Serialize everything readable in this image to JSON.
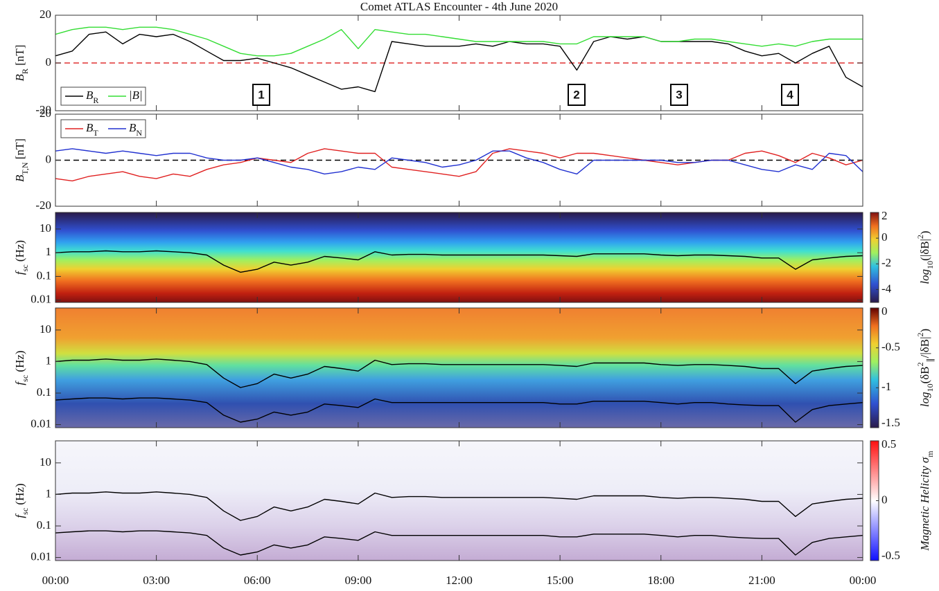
{
  "chart_data": [
    {
      "type": "line",
      "title": "Comet ATLAS Encounter - 4th June 2020",
      "ylabel": [
        {
          "t": "B"
        },
        {
          "t": "R",
          "s": "sub"
        },
        {
          "t": " [nT]"
        }
      ],
      "xlim": [
        0,
        24
      ],
      "ylim": [
        -20,
        20
      ],
      "yticks": [
        -20,
        0,
        20
      ],
      "zero_line": "#e03030",
      "legend": "lower left",
      "annotations": [
        "1",
        "2",
        "3",
        "4"
      ],
      "x": [
        0,
        0.5,
        1,
        1.5,
        2,
        2.5,
        3,
        3.5,
        4,
        4.5,
        5,
        5.5,
        6,
        6.5,
        7,
        7.5,
        8,
        8.5,
        9,
        9.5,
        10,
        10.5,
        11,
        11.5,
        12,
        12.5,
        13,
        13.5,
        14,
        14.5,
        15,
        15.5,
        16,
        16.5,
        17,
        17.5,
        18,
        18.5,
        19,
        19.5,
        20,
        20.5,
        21,
        21.5,
        22,
        22.5,
        23,
        23.5,
        24
      ],
      "series": [
        {
          "name": [
            {
              "t": "B"
            },
            {
              "t": "R",
              "s": "sub"
            }
          ],
          "color": "#000000",
          "values": [
            3,
            5,
            12,
            13,
            8,
            12,
            11,
            12,
            9,
            5,
            1,
            1,
            2,
            0,
            -2,
            -5,
            -8,
            -11,
            -10,
            -12,
            9,
            8,
            7,
            7,
            7,
            8,
            7,
            9,
            8,
            8,
            7,
            -3,
            9,
            11,
            10,
            11,
            9,
            9,
            9,
            9,
            8,
            5,
            3,
            4,
            0,
            4,
            7,
            -6,
            -10
          ]
        },
        {
          "name": [
            {
              "t": "|B|"
            }
          ],
          "color": "#33dd33",
          "values": [
            12,
            14,
            15,
            15,
            14,
            15,
            15,
            14,
            12,
            10,
            7,
            4,
            3,
            3,
            4,
            7,
            10,
            14,
            6,
            14,
            13,
            12,
            12,
            11,
            10,
            9,
            9,
            9,
            9,
            9,
            8,
            8,
            11,
            11,
            11,
            11,
            9,
            9,
            10,
            10,
            9,
            8,
            7,
            8,
            7,
            9,
            10,
            10,
            10
          ]
        }
      ]
    },
    {
      "type": "line",
      "ylabel": [
        {
          "t": "B"
        },
        {
          "t": "T,N",
          "s": "sub"
        },
        {
          "t": " [nT]"
        }
      ],
      "xlim": [
        0,
        24
      ],
      "ylim": [
        -20,
        20
      ],
      "yticks": [
        -20,
        0,
        20
      ],
      "zero_line": "#000000",
      "legend": "upper left",
      "x": [
        0,
        0.5,
        1,
        1.5,
        2,
        2.5,
        3,
        3.5,
        4,
        4.5,
        5,
        5.5,
        6,
        6.5,
        7,
        7.5,
        8,
        8.5,
        9,
        9.5,
        10,
        10.5,
        11,
        11.5,
        12,
        12.5,
        13,
        13.5,
        14,
        14.5,
        15,
        15.5,
        16,
        16.5,
        17,
        17.5,
        18,
        18.5,
        19,
        19.5,
        20,
        20.5,
        21,
        21.5,
        22,
        22.5,
        23,
        23.5,
        24
      ],
      "series": [
        {
          "name": [
            {
              "t": "B"
            },
            {
              "t": "T",
              "s": "sub"
            }
          ],
          "color": "#e02020",
          "values": [
            -8,
            -9,
            -7,
            -6,
            -5,
            -7,
            -8,
            -6,
            -7,
            -4,
            -2,
            -1,
            1,
            0,
            -1,
            3,
            5,
            4,
            3,
            3,
            -3,
            -4,
            -5,
            -6,
            -7,
            -5,
            3,
            5,
            4,
            3,
            1,
            3,
            3,
            2,
            1,
            0,
            -1,
            -2,
            -1,
            0,
            0,
            3,
            4,
            2,
            -1,
            3,
            1,
            -2,
            0
          ]
        },
        {
          "name": [
            {
              "t": "B"
            },
            {
              "t": "N",
              "s": "sub"
            }
          ],
          "color": "#2030d0",
          "values": [
            4,
            5,
            4,
            3,
            4,
            3,
            2,
            3,
            3,
            1,
            0,
            0,
            1,
            -1,
            -3,
            -4,
            -6,
            -5,
            -3,
            -4,
            1,
            0,
            -1,
            -3,
            -2,
            0,
            4,
            4,
            1,
            -1,
            -4,
            -6,
            0,
            0,
            0,
            0,
            0,
            -1,
            -1,
            0,
            0,
            -2,
            -4,
            -5,
            -2,
            -4,
            3,
            2,
            -5
          ]
        }
      ]
    },
    {
      "type": "spectrogram",
      "ylabel": [
        {
          "t": "f"
        },
        {
          "t": "sc",
          "s": "sub"
        },
        {
          "t": " (Hz)"
        }
      ],
      "clabel": [
        {
          "t": "log"
        },
        {
          "t": "10",
          "s": "sub"
        },
        {
          "t": "(|δB|"
        },
        {
          "t": "2",
          "s": "sup"
        },
        {
          "t": ")"
        }
      ],
      "xlim": [
        0,
        24
      ],
      "ylim": [
        0.008,
        50
      ],
      "log": true,
      "yticks": [
        0.01,
        0.1,
        1,
        10
      ],
      "clim": [
        -5,
        2
      ],
      "cticks": [
        -4,
        -2,
        0,
        2
      ],
      "x": [
        0,
        0.5,
        1,
        1.5,
        2,
        2.5,
        3,
        3.5,
        4,
        4.5,
        5,
        5.5,
        6,
        6.5,
        7,
        7.5,
        8,
        8.5,
        9,
        9.5,
        10,
        10.5,
        11,
        11.5,
        12,
        12.5,
        13,
        13.5,
        14,
        14.5,
        15,
        15.5,
        16,
        16.5,
        17,
        17.5,
        18,
        18.5,
        19,
        19.5,
        20,
        20.5,
        21,
        21.5,
        22,
        22.5,
        23,
        23.5,
        24
      ],
      "series": [
        {
          "color": "#000000",
          "values": [
            1,
            1.1,
            1.1,
            1.2,
            1.1,
            1.1,
            1.2,
            1.1,
            1.0,
            0.8,
            0.3,
            0.15,
            0.2,
            0.4,
            0.3,
            0.4,
            0.7,
            0.6,
            0.5,
            1.1,
            0.8,
            0.85,
            0.85,
            0.8,
            0.8,
            0.8,
            0.8,
            0.8,
            0.8,
            0.8,
            0.75,
            0.7,
            0.9,
            0.9,
            0.9,
            0.9,
            0.8,
            0.75,
            0.8,
            0.8,
            0.75,
            0.7,
            0.6,
            0.6,
            0.2,
            0.5,
            0.6,
            0.7,
            0.75
          ]
        }
      ]
    },
    {
      "type": "spectrogram",
      "ylabel": [
        {
          "t": "f"
        },
        {
          "t": "sc",
          "s": "sub"
        },
        {
          "t": " (Hz)"
        }
      ],
      "clabel": [
        {
          "t": "log"
        },
        {
          "t": "10",
          "s": "sub"
        },
        {
          "t": "(δB"
        },
        {
          "t": "2",
          "s": "sup"
        },
        {
          "t": "∥",
          "s": "sub"
        },
        {
          "t": "/|δB|"
        },
        {
          "t": "2",
          "s": "sup"
        },
        {
          "t": ")"
        }
      ],
      "xlim": [
        0,
        24
      ],
      "ylim": [
        0.008,
        50
      ],
      "log": true,
      "yticks": [
        0.01,
        0.1,
        1,
        10
      ],
      "clim": [
        -1.5,
        0
      ],
      "cticks": [
        -1.5,
        -1,
        -0.5,
        0
      ],
      "x": [
        0,
        0.5,
        1,
        1.5,
        2,
        2.5,
        3,
        3.5,
        4,
        4.5,
        5,
        5.5,
        6,
        6.5,
        7,
        7.5,
        8,
        8.5,
        9,
        9.5,
        10,
        10.5,
        11,
        11.5,
        12,
        12.5,
        13,
        13.5,
        14,
        14.5,
        15,
        15.5,
        16,
        16.5,
        17,
        17.5,
        18,
        18.5,
        19,
        19.5,
        20,
        20.5,
        21,
        21.5,
        22,
        22.5,
        23,
        23.5,
        24
      ],
      "series": [
        {
          "color": "#000000",
          "values": [
            1,
            1.1,
            1.1,
            1.2,
            1.1,
            1.1,
            1.2,
            1.1,
            1.0,
            0.8,
            0.3,
            0.15,
            0.2,
            0.4,
            0.3,
            0.4,
            0.7,
            0.6,
            0.5,
            1.1,
            0.8,
            0.85,
            0.85,
            0.8,
            0.8,
            0.8,
            0.8,
            0.8,
            0.8,
            0.8,
            0.75,
            0.7,
            0.9,
            0.9,
            0.9,
            0.9,
            0.8,
            0.75,
            0.8,
            0.8,
            0.75,
            0.7,
            0.6,
            0.6,
            0.2,
            0.5,
            0.6,
            0.7,
            0.75
          ]
        },
        {
          "color": "#000000",
          "values": [
            0.06,
            0.065,
            0.07,
            0.07,
            0.065,
            0.07,
            0.07,
            0.065,
            0.06,
            0.05,
            0.02,
            0.012,
            0.015,
            0.025,
            0.02,
            0.025,
            0.045,
            0.04,
            0.035,
            0.065,
            0.05,
            0.05,
            0.05,
            0.05,
            0.05,
            0.05,
            0.05,
            0.05,
            0.05,
            0.05,
            0.045,
            0.045,
            0.055,
            0.055,
            0.055,
            0.055,
            0.05,
            0.045,
            0.05,
            0.05,
            0.045,
            0.042,
            0.04,
            0.04,
            0.012,
            0.03,
            0.04,
            0.045,
            0.05
          ]
        }
      ]
    },
    {
      "type": "spectrogram",
      "ylabel": [
        {
          "t": "f"
        },
        {
          "t": "sc",
          "s": "sub"
        },
        {
          "t": " (Hz)"
        }
      ],
      "clabel": [
        {
          "t": "Magnetic Helicity σ"
        },
        {
          "t": "m",
          "s": "sub"
        }
      ],
      "xlim": [
        0,
        24
      ],
      "ylim": [
        0.008,
        50
      ],
      "log": true,
      "yticks": [
        0.01,
        0.1,
        1,
        10
      ],
      "clim": [
        -0.5,
        0.5
      ],
      "cticks": [
        -0.5,
        0,
        0.5
      ],
      "xticks": [
        {
          "value": 0,
          "label": "00:00"
        },
        {
          "value": 3,
          "label": "03:00"
        },
        {
          "value": 6,
          "label": "06:00"
        },
        {
          "value": 9,
          "label": "09:00"
        },
        {
          "value": 12,
          "label": "12:00"
        },
        {
          "value": 15,
          "label": "15:00"
        },
        {
          "value": 18,
          "label": "18:00"
        },
        {
          "value": 21,
          "label": "21:00"
        },
        {
          "value": 24,
          "label": "00:00"
        }
      ],
      "x": [
        0,
        0.5,
        1,
        1.5,
        2,
        2.5,
        3,
        3.5,
        4,
        4.5,
        5,
        5.5,
        6,
        6.5,
        7,
        7.5,
        8,
        8.5,
        9,
        9.5,
        10,
        10.5,
        11,
        11.5,
        12,
        12.5,
        13,
        13.5,
        14,
        14.5,
        15,
        15.5,
        16,
        16.5,
        17,
        17.5,
        18,
        18.5,
        19,
        19.5,
        20,
        20.5,
        21,
        21.5,
        22,
        22.5,
        23,
        23.5,
        24
      ],
      "series": [
        {
          "color": "#000000",
          "values": [
            1,
            1.1,
            1.1,
            1.2,
            1.1,
            1.1,
            1.2,
            1.1,
            1.0,
            0.8,
            0.3,
            0.15,
            0.2,
            0.4,
            0.3,
            0.4,
            0.7,
            0.6,
            0.5,
            1.1,
            0.8,
            0.85,
            0.85,
            0.8,
            0.8,
            0.8,
            0.8,
            0.8,
            0.8,
            0.8,
            0.75,
            0.7,
            0.9,
            0.9,
            0.9,
            0.9,
            0.8,
            0.75,
            0.8,
            0.8,
            0.75,
            0.7,
            0.6,
            0.6,
            0.2,
            0.5,
            0.6,
            0.7,
            0.75
          ]
        },
        {
          "color": "#000000",
          "values": [
            0.06,
            0.065,
            0.07,
            0.07,
            0.065,
            0.07,
            0.07,
            0.065,
            0.06,
            0.05,
            0.02,
            0.012,
            0.015,
            0.025,
            0.02,
            0.025,
            0.045,
            0.04,
            0.035,
            0.065,
            0.05,
            0.05,
            0.05,
            0.05,
            0.05,
            0.05,
            0.05,
            0.05,
            0.05,
            0.05,
            0.045,
            0.045,
            0.055,
            0.055,
            0.055,
            0.055,
            0.05,
            0.045,
            0.05,
            0.05,
            0.045,
            0.042,
            0.04,
            0.04,
            0.012,
            0.03,
            0.04,
            0.045,
            0.05
          ]
        }
      ]
    }
  ]
}
